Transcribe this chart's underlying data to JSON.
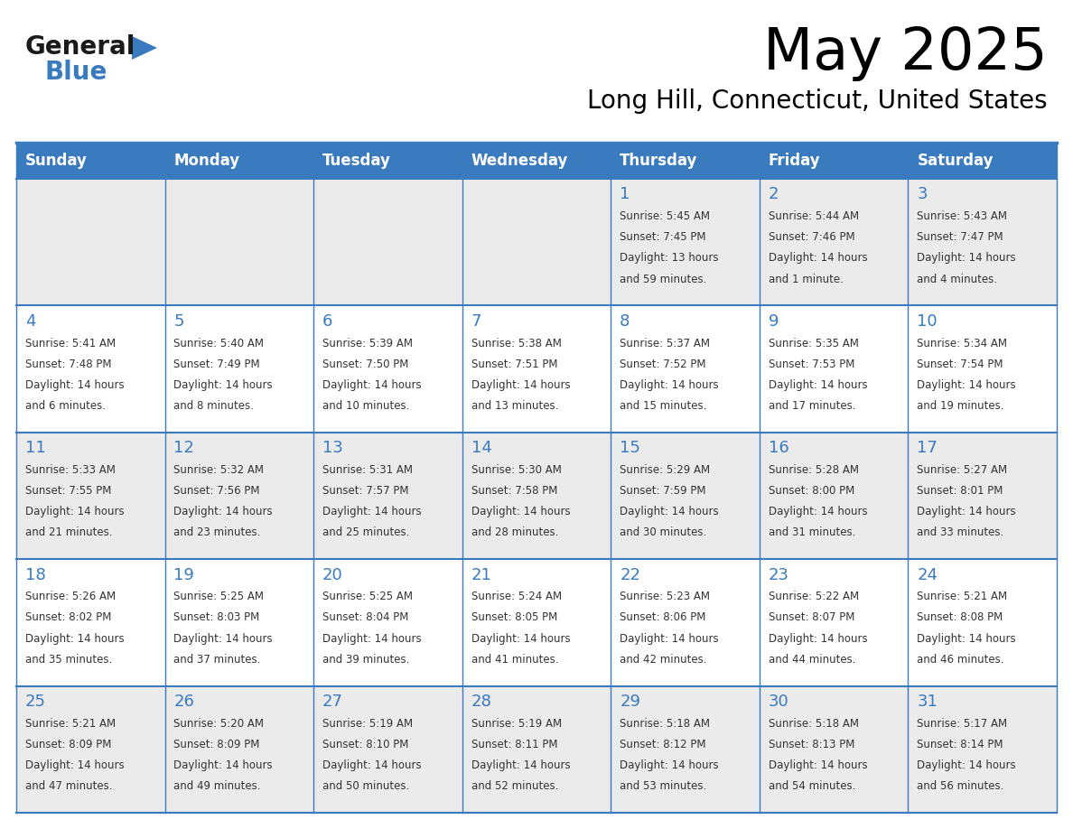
{
  "title": "May 2025",
  "subtitle": "Long Hill, Connecticut, United States",
  "header_color": "#3a7abf",
  "header_text_color": "#ffffff",
  "cell_bg_even": "#ebebeb",
  "cell_bg_odd": "#ffffff",
  "day_number_color": "#3a7abf",
  "text_color": "#333333",
  "line_color": "#3a7abf",
  "days_of_week": [
    "Sunday",
    "Monday",
    "Tuesday",
    "Wednesday",
    "Thursday",
    "Friday",
    "Saturday"
  ],
  "weeks": [
    [
      {
        "day": "",
        "info": ""
      },
      {
        "day": "",
        "info": ""
      },
      {
        "day": "",
        "info": ""
      },
      {
        "day": "",
        "info": ""
      },
      {
        "day": "1",
        "info": "Sunrise: 5:45 AM\nSunset: 7:45 PM\nDaylight: 13 hours\nand 59 minutes."
      },
      {
        "day": "2",
        "info": "Sunrise: 5:44 AM\nSunset: 7:46 PM\nDaylight: 14 hours\nand 1 minute."
      },
      {
        "day": "3",
        "info": "Sunrise: 5:43 AM\nSunset: 7:47 PM\nDaylight: 14 hours\nand 4 minutes."
      }
    ],
    [
      {
        "day": "4",
        "info": "Sunrise: 5:41 AM\nSunset: 7:48 PM\nDaylight: 14 hours\nand 6 minutes."
      },
      {
        "day": "5",
        "info": "Sunrise: 5:40 AM\nSunset: 7:49 PM\nDaylight: 14 hours\nand 8 minutes."
      },
      {
        "day": "6",
        "info": "Sunrise: 5:39 AM\nSunset: 7:50 PM\nDaylight: 14 hours\nand 10 minutes."
      },
      {
        "day": "7",
        "info": "Sunrise: 5:38 AM\nSunset: 7:51 PM\nDaylight: 14 hours\nand 13 minutes."
      },
      {
        "day": "8",
        "info": "Sunrise: 5:37 AM\nSunset: 7:52 PM\nDaylight: 14 hours\nand 15 minutes."
      },
      {
        "day": "9",
        "info": "Sunrise: 5:35 AM\nSunset: 7:53 PM\nDaylight: 14 hours\nand 17 minutes."
      },
      {
        "day": "10",
        "info": "Sunrise: 5:34 AM\nSunset: 7:54 PM\nDaylight: 14 hours\nand 19 minutes."
      }
    ],
    [
      {
        "day": "11",
        "info": "Sunrise: 5:33 AM\nSunset: 7:55 PM\nDaylight: 14 hours\nand 21 minutes."
      },
      {
        "day": "12",
        "info": "Sunrise: 5:32 AM\nSunset: 7:56 PM\nDaylight: 14 hours\nand 23 minutes."
      },
      {
        "day": "13",
        "info": "Sunrise: 5:31 AM\nSunset: 7:57 PM\nDaylight: 14 hours\nand 25 minutes."
      },
      {
        "day": "14",
        "info": "Sunrise: 5:30 AM\nSunset: 7:58 PM\nDaylight: 14 hours\nand 28 minutes."
      },
      {
        "day": "15",
        "info": "Sunrise: 5:29 AM\nSunset: 7:59 PM\nDaylight: 14 hours\nand 30 minutes."
      },
      {
        "day": "16",
        "info": "Sunrise: 5:28 AM\nSunset: 8:00 PM\nDaylight: 14 hours\nand 31 minutes."
      },
      {
        "day": "17",
        "info": "Sunrise: 5:27 AM\nSunset: 8:01 PM\nDaylight: 14 hours\nand 33 minutes."
      }
    ],
    [
      {
        "day": "18",
        "info": "Sunrise: 5:26 AM\nSunset: 8:02 PM\nDaylight: 14 hours\nand 35 minutes."
      },
      {
        "day": "19",
        "info": "Sunrise: 5:25 AM\nSunset: 8:03 PM\nDaylight: 14 hours\nand 37 minutes."
      },
      {
        "day": "20",
        "info": "Sunrise: 5:25 AM\nSunset: 8:04 PM\nDaylight: 14 hours\nand 39 minutes."
      },
      {
        "day": "21",
        "info": "Sunrise: 5:24 AM\nSunset: 8:05 PM\nDaylight: 14 hours\nand 41 minutes."
      },
      {
        "day": "22",
        "info": "Sunrise: 5:23 AM\nSunset: 8:06 PM\nDaylight: 14 hours\nand 42 minutes."
      },
      {
        "day": "23",
        "info": "Sunrise: 5:22 AM\nSunset: 8:07 PM\nDaylight: 14 hours\nand 44 minutes."
      },
      {
        "day": "24",
        "info": "Sunrise: 5:21 AM\nSunset: 8:08 PM\nDaylight: 14 hours\nand 46 minutes."
      }
    ],
    [
      {
        "day": "25",
        "info": "Sunrise: 5:21 AM\nSunset: 8:09 PM\nDaylight: 14 hours\nand 47 minutes."
      },
      {
        "day": "26",
        "info": "Sunrise: 5:20 AM\nSunset: 8:09 PM\nDaylight: 14 hours\nand 49 minutes."
      },
      {
        "day": "27",
        "info": "Sunrise: 5:19 AM\nSunset: 8:10 PM\nDaylight: 14 hours\nand 50 minutes."
      },
      {
        "day": "28",
        "info": "Sunrise: 5:19 AM\nSunset: 8:11 PM\nDaylight: 14 hours\nand 52 minutes."
      },
      {
        "day": "29",
        "info": "Sunrise: 5:18 AM\nSunset: 8:12 PM\nDaylight: 14 hours\nand 53 minutes."
      },
      {
        "day": "30",
        "info": "Sunrise: 5:18 AM\nSunset: 8:13 PM\nDaylight: 14 hours\nand 54 minutes."
      },
      {
        "day": "31",
        "info": "Sunrise: 5:17 AM\nSunset: 8:14 PM\nDaylight: 14 hours\nand 56 minutes."
      }
    ]
  ]
}
